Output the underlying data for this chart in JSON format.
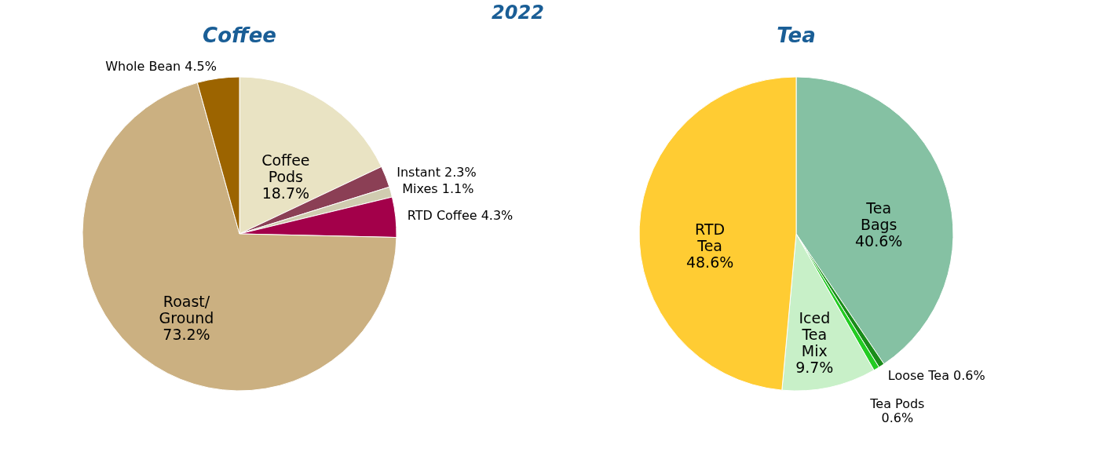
{
  "chart_data": [
    {
      "type": "pie",
      "title": "2022",
      "subtitle": "Coffee",
      "legend": false,
      "categories": [
        "Coffee Pods",
        "Instant",
        "Mixes",
        "RTD Coffee",
        "Roast/Ground",
        "Whole Bean"
      ],
      "values": [
        18.7,
        2.3,
        1.1,
        4.3,
        73.2,
        4.5
      ],
      "value_labels": [
        "18.7%",
        "2.3%",
        "1.1%",
        "4.3%",
        "73.2%",
        "4.5%"
      ],
      "colors": [
        "#e9e3c3",
        "#8b3f55",
        "#d0ccb0",
        "#a3004a",
        "#cbb081",
        "#9c6400"
      ]
    },
    {
      "type": "pie",
      "subtitle": "Tea",
      "legend": false,
      "categories": [
        "Tea Bags",
        "Loose Tea",
        "Tea Pods",
        "Iced Tea Mix",
        "RTD Tea"
      ],
      "values": [
        40.6,
        0.6,
        0.6,
        9.7,
        48.6
      ],
      "value_labels": [
        "40.6%",
        "0.6%",
        "0.6%",
        "9.7%",
        "48.6%"
      ],
      "colors": [
        "#85c1a3",
        "#1a8c1a",
        "#22cc22",
        "#c8f0c8",
        "#ffcc33"
      ]
    }
  ]
}
